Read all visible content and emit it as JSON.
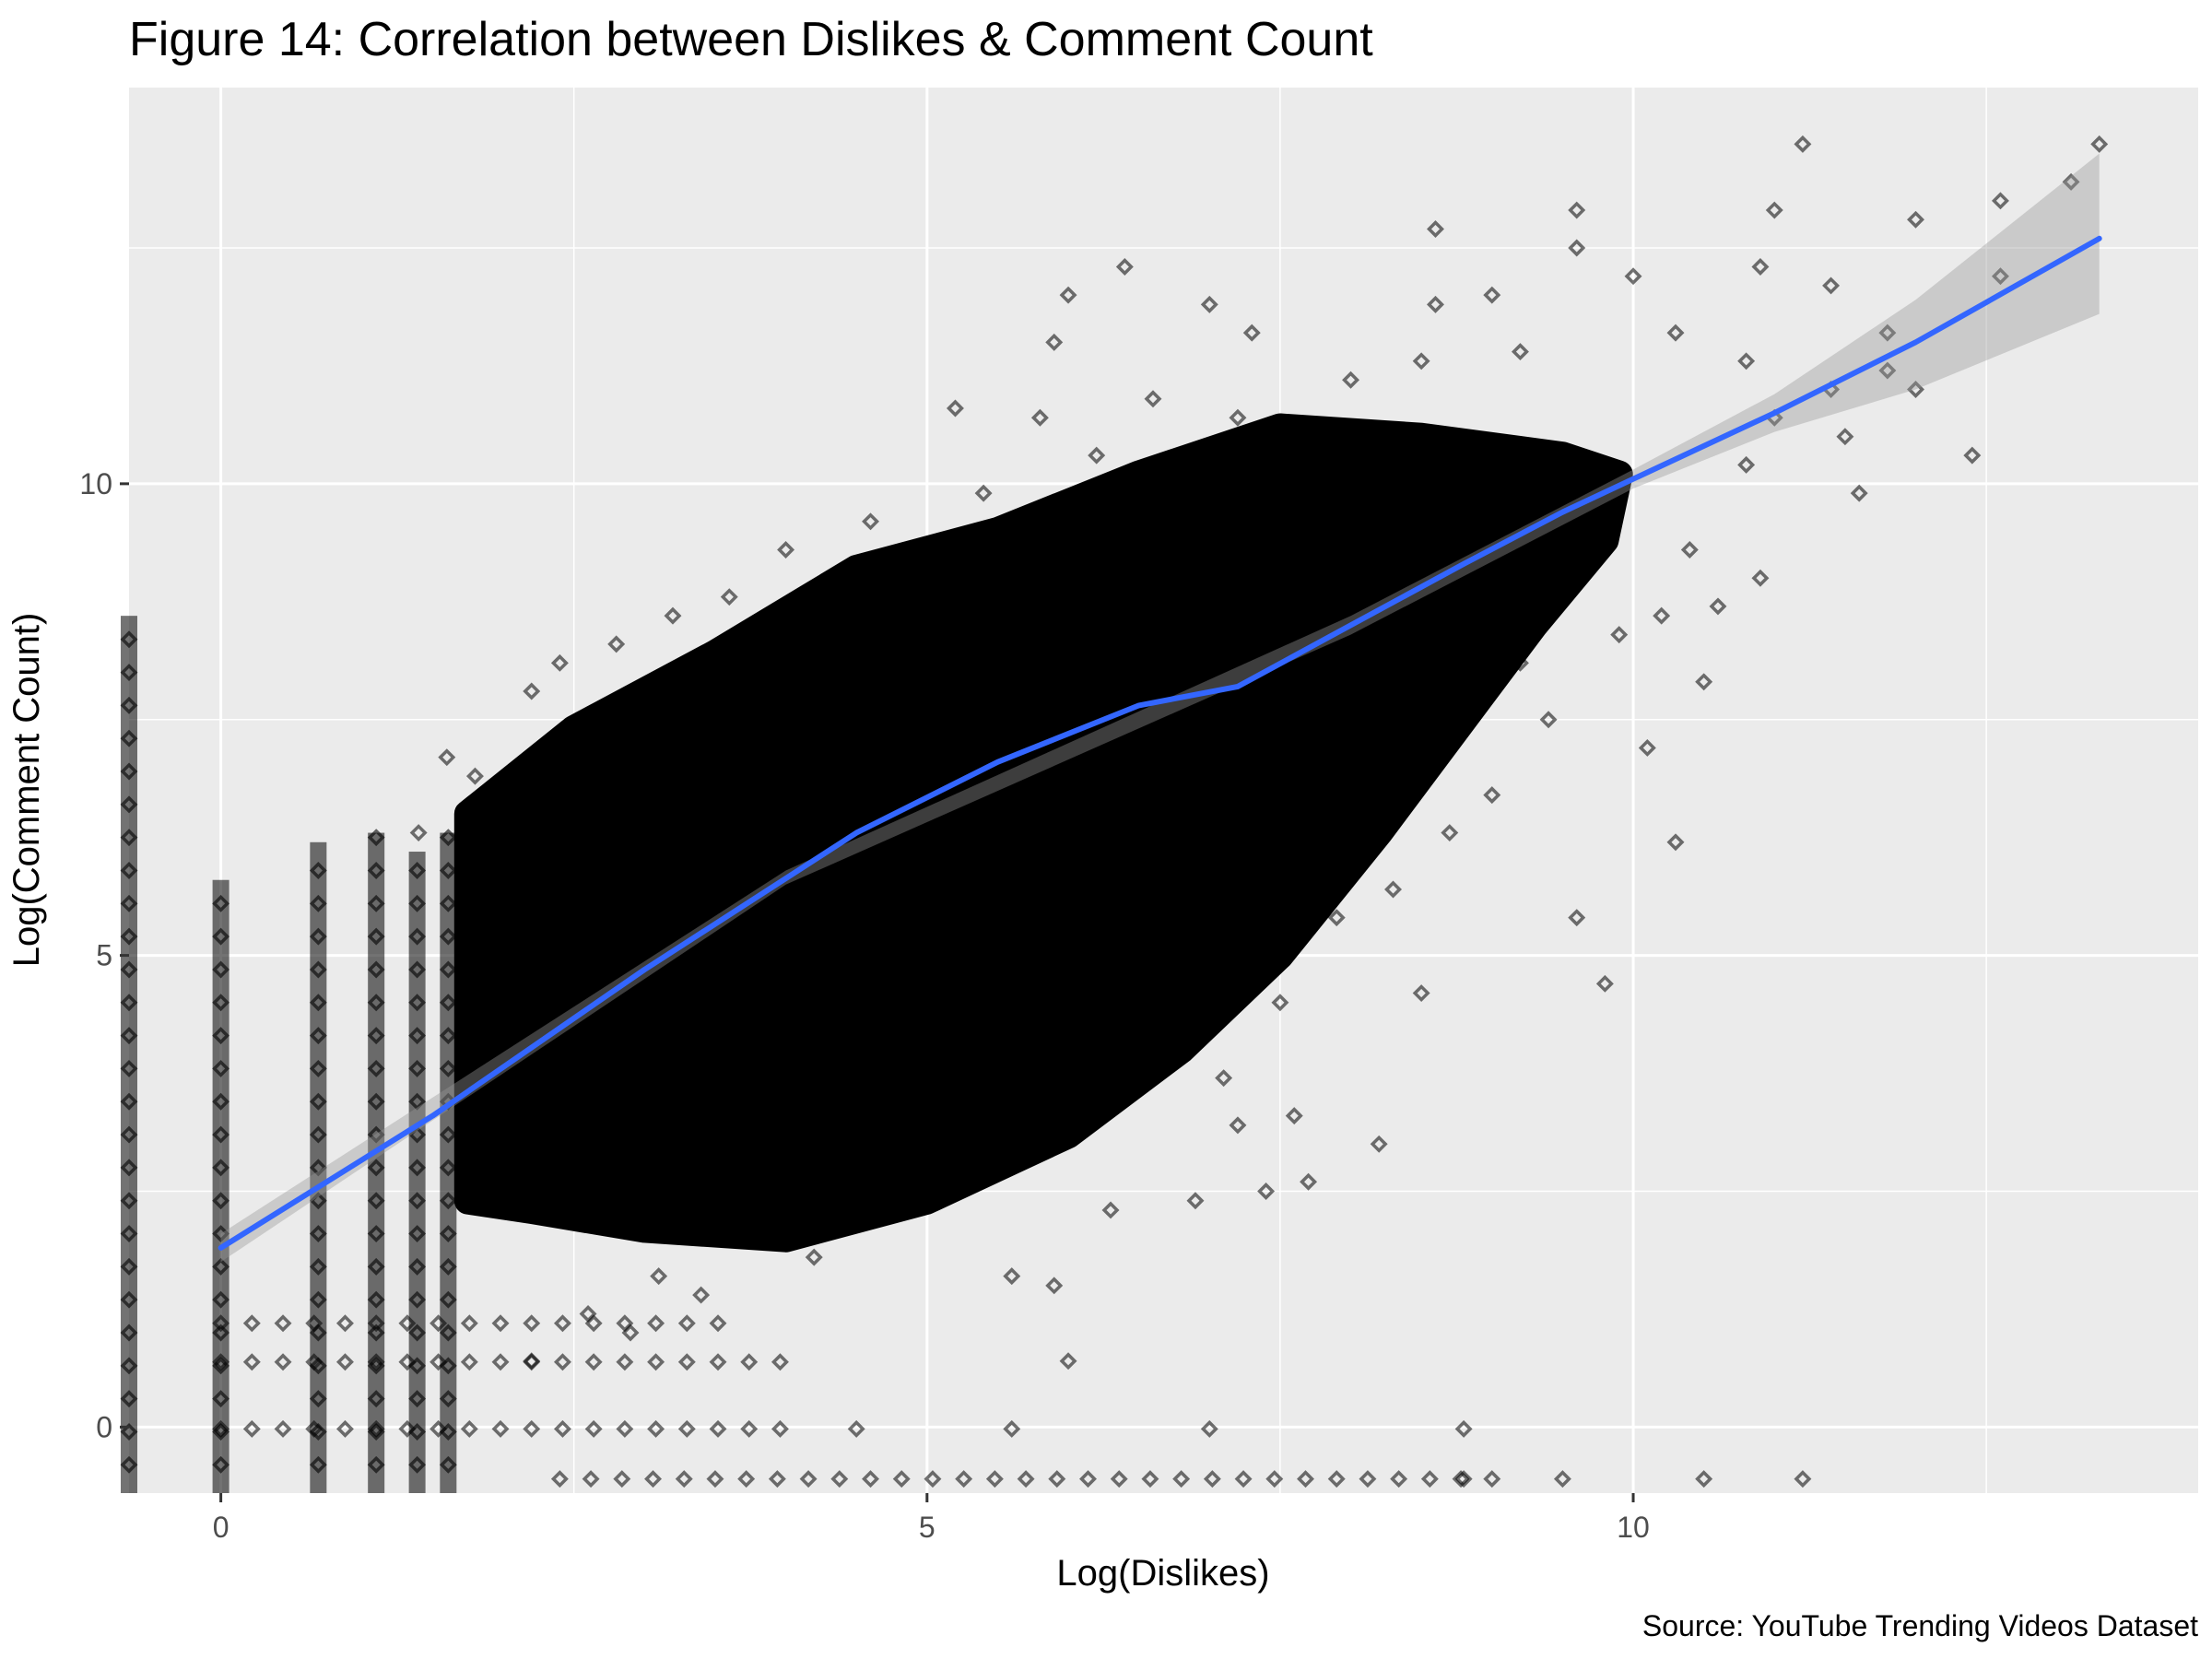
{
  "chart_data": {
    "type": "scatter",
    "title": "Figure 14: Correlation between Dislikes & Comment Count",
    "caption": "Source: YouTube Trending Videos Dataset",
    "xlabel": "Log(Dislikes)",
    "ylabel": "Log(Comment Count)",
    "xlim": [
      -0.65,
      14.0
    ],
    "ylim": [
      -0.7,
      14.2
    ],
    "x_ticks": [
      0,
      5,
      10
    ],
    "y_ticks": [
      0,
      5,
      10
    ],
    "x_tick_labels": [
      "0",
      "5",
      "10"
    ],
    "y_tick_labels": [
      "0",
      "5",
      "10"
    ],
    "grid": true,
    "point_shape": "hollow-diamond",
    "point_alpha": 0.5,
    "smooth_line": {
      "color": "#3366ff",
      "points": [
        [
          0,
          1.9
        ],
        [
          1.5,
          3.3
        ],
        [
          3.0,
          4.85
        ],
        [
          4.5,
          6.3
        ],
        [
          5.5,
          7.05
        ],
        [
          6.5,
          7.65
        ],
        [
          7.2,
          7.85
        ],
        [
          8.0,
          8.5
        ],
        [
          8.8,
          9.15
        ],
        [
          9.5,
          9.7
        ],
        [
          10.0,
          10.05
        ],
        [
          11.0,
          10.75
        ],
        [
          12.0,
          11.5
        ],
        [
          13.3,
          12.6
        ]
      ],
      "ci_band": [
        [
          0,
          1.75,
          2.05
        ],
        [
          4.0,
          5.75,
          5.9
        ],
        [
          8.0,
          8.4,
          8.6
        ],
        [
          10.0,
          9.95,
          10.15
        ],
        [
          11.0,
          10.55,
          10.95
        ],
        [
          12.0,
          11.0,
          11.95
        ],
        [
          13.3,
          11.8,
          13.5
        ]
      ]
    },
    "points": [
      [
        11.2,
        13.6
      ],
      [
        13.3,
        13.6
      ],
      [
        12.6,
        13.0
      ],
      [
        13.1,
        13.2
      ],
      [
        11.0,
        12.9
      ],
      [
        9.6,
        12.9
      ],
      [
        12.0,
        12.8
      ],
      [
        8.6,
        12.7
      ],
      [
        9.6,
        12.5
      ],
      [
        6.4,
        12.3
      ],
      [
        12.6,
        12.2
      ],
      [
        10.9,
        12.3
      ],
      [
        10.0,
        12.2
      ],
      [
        11.4,
        12.1
      ],
      [
        6.0,
        12.0
      ],
      [
        9.0,
        12.0
      ],
      [
        7.0,
        11.9
      ],
      [
        8.6,
        11.9
      ],
      [
        11.8,
        11.6
      ],
      [
        11.8,
        11.2
      ],
      [
        7.3,
        11.6
      ],
      [
        5.9,
        11.5
      ],
      [
        12.4,
        10.3
      ],
      [
        11.6,
        9.9
      ],
      [
        4.0,
        9.3
      ],
      [
        10.9,
        9.0
      ],
      [
        10.2,
        8.6
      ],
      [
        9.9,
        8.4
      ],
      [
        10.5,
        7.9
      ],
      [
        3.2,
        8.6
      ],
      [
        2.4,
        8.1
      ],
      [
        1.6,
        7.1
      ],
      [
        1.8,
        6.9
      ],
      [
        1.4,
        6.3
      ],
      [
        9.8,
        4.7
      ],
      [
        7.1,
        3.7
      ],
      [
        7.6,
        3.3
      ],
      [
        6.9,
        2.4
      ],
      [
        5.6,
        1.6
      ],
      [
        7.4,
        2.5
      ],
      [
        6.3,
        2.3
      ],
      [
        7.2,
        3.2
      ],
      [
        8.2,
        3.0
      ],
      [
        8.8,
        -0.02
      ],
      [
        7.0,
        -0.02
      ],
      [
        6.0,
        0.7
      ],
      [
        5.6,
        -0.02
      ],
      [
        4.5,
        -0.02
      ],
      [
        11.2,
        -0.55
      ],
      [
        10.5,
        -0.55
      ],
      [
        9.5,
        -0.55
      ],
      [
        8.8,
        -0.55
      ],
      [
        5.9,
        1.5
      ],
      [
        7.7,
        2.6
      ],
      [
        8.5,
        4.6
      ],
      [
        7.5,
        4.5
      ],
      [
        6.8,
        4.3
      ],
      [
        9.0,
        6.7
      ],
      [
        10.3,
        6.2
      ],
      [
        8.3,
        5.7
      ],
      [
        9.6,
        5.4
      ],
      [
        10.1,
        7.2
      ],
      [
        10.6,
        8.7
      ],
      [
        11.0,
        10.7
      ],
      [
        11.5,
        10.5
      ],
      [
        12.0,
        11.0
      ],
      [
        10.8,
        10.2
      ],
      [
        9.3,
        8.9
      ],
      [
        8.9,
        9.6
      ],
      [
        5.2,
        10.8
      ],
      [
        5.8,
        10.7
      ],
      [
        6.6,
        10.9
      ],
      [
        7.2,
        10.7
      ],
      [
        8.0,
        11.1
      ],
      [
        8.5,
        11.3
      ],
      [
        9.2,
        11.4
      ],
      [
        10.3,
        11.6
      ],
      [
        10.8,
        11.3
      ],
      [
        11.4,
        11.0
      ],
      [
        3.6,
        8.8
      ],
      [
        2.8,
        8.3
      ],
      [
        2.2,
        7.8
      ],
      [
        4.6,
        9.6
      ],
      [
        5.4,
        9.9
      ],
      [
        6.2,
        10.3
      ],
      [
        7.6,
        10.5
      ],
      [
        9.0,
        10.4
      ],
      [
        10.4,
        9.3
      ],
      [
        9.4,
        7.5
      ],
      [
        8.7,
        6.3
      ],
      [
        7.9,
        5.4
      ],
      [
        7.3,
        4.8
      ],
      [
        6.5,
        3.7
      ],
      [
        5.8,
        2.9
      ],
      [
        4.9,
        2.3
      ],
      [
        4.2,
        1.8
      ],
      [
        3.4,
        1.4
      ],
      [
        2.9,
        1.0
      ],
      [
        2.2,
        0.7
      ],
      [
        2.6,
        1.2
      ],
      [
        3.1,
        1.6
      ],
      [
        3.8,
        2.0
      ],
      [
        4.4,
        2.5
      ],
      [
        5.2,
        3.2
      ],
      [
        6.0,
        4.0
      ],
      [
        6.9,
        5.0
      ],
      [
        7.8,
        6.2
      ],
      [
        8.6,
        7.3
      ],
      [
        9.2,
        8.1
      ]
    ],
    "vertical_columns": [
      {
        "x": -0.65,
        "y_min": -0.7,
        "y_max": 8.6
      },
      {
        "x": 0.0,
        "y_min": -0.7,
        "y_max": 5.8
      },
      {
        "x": 0.69,
        "y_min": -0.7,
        "y_max": 6.2
      },
      {
        "x": 1.1,
        "y_min": -0.7,
        "y_max": 6.3
      },
      {
        "x": 1.39,
        "y_min": -0.7,
        "y_max": 6.1
      },
      {
        "x": 1.61,
        "y_min": -0.7,
        "y_max": 6.3
      }
    ],
    "dense_region": [
      [
        1.75,
        6.5
      ],
      [
        2.5,
        7.4
      ],
      [
        3.5,
        8.2
      ],
      [
        4.5,
        9.1
      ],
      [
        5.5,
        9.5
      ],
      [
        6.5,
        10.1
      ],
      [
        7.5,
        10.6
      ],
      [
        8.5,
        10.5
      ],
      [
        9.5,
        10.3
      ],
      [
        9.9,
        10.1
      ],
      [
        9.8,
        9.4
      ],
      [
        9.3,
        8.5
      ],
      [
        8.8,
        7.5
      ],
      [
        8.2,
        6.3
      ],
      [
        7.5,
        5.0
      ],
      [
        6.8,
        4.0
      ],
      [
        6.0,
        3.1
      ],
      [
        5.0,
        2.4
      ],
      [
        4.0,
        2.0
      ],
      [
        3.0,
        2.1
      ],
      [
        2.2,
        2.3
      ],
      [
        1.75,
        2.4
      ]
    ]
  }
}
